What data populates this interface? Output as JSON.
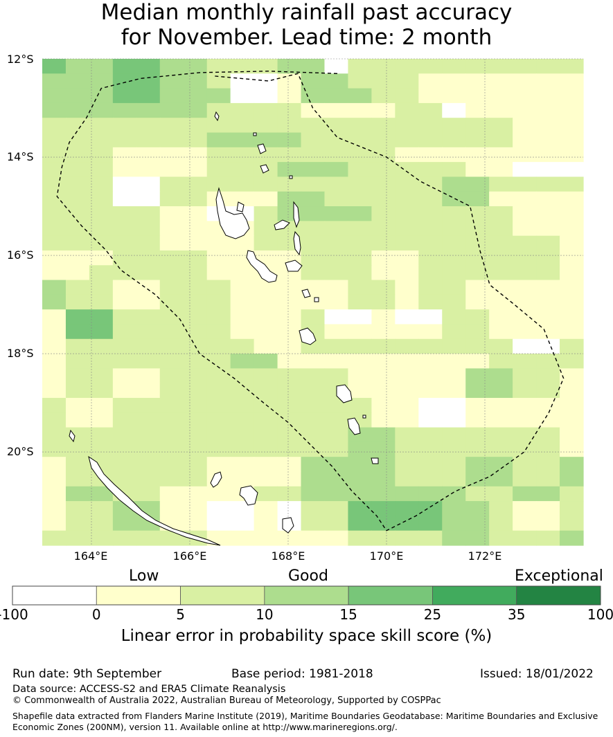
{
  "title": {
    "line1": "Median monthly rainfall past accuracy",
    "line2": "for November. Lead time: 2 month"
  },
  "map": {
    "lat_labels": [
      "12°S",
      "14°S",
      "16°S",
      "18°S",
      "20°S"
    ],
    "lon_labels": [
      "164°E",
      "166°E",
      "168°E",
      "170°E",
      "172°E"
    ],
    "lon_range": [
      163.0,
      174.0
    ],
    "lat_range": [
      -21.9,
      -12.0
    ],
    "grid_resolution_deg": [
      0.83,
      0.56
    ],
    "colors": {
      "nodata": "#ffffff",
      "c0": "#ffffcc",
      "c5": "#d9f0a3",
      "c10": "#addd8e",
      "c15": "#78c679",
      "c25": "#41ab5d",
      "c35": "#238443",
      "boundary": "#000000"
    },
    "skill_grid": [
      [
        3,
        2,
        2,
        3,
        3,
        2,
        2,
        1,
        1,
        1,
        2,
        2,
        -1,
        1,
        1,
        1,
        1,
        1,
        1,
        1,
        1,
        1,
        1
      ],
      [
        2,
        2,
        2,
        3,
        3,
        2,
        2,
        1,
        -1,
        -1,
        0,
        2,
        2,
        1,
        1,
        1,
        0,
        0,
        0,
        0,
        0,
        0,
        0
      ],
      [
        2,
        2,
        2,
        3,
        3,
        2,
        2,
        2,
        -1,
        -1,
        0,
        2,
        2,
        2,
        1,
        1,
        0,
        0,
        0,
        0,
        0,
        0,
        0
      ],
      [
        2,
        2,
        2,
        2,
        2,
        2,
        2,
        1,
        1,
        1,
        1,
        0,
        0,
        0,
        0,
        1,
        1,
        -1,
        0,
        0,
        0,
        0,
        0
      ],
      [
        1,
        1,
        1,
        1,
        1,
        1,
        1,
        1,
        1,
        1,
        1,
        1,
        1,
        1,
        1,
        1,
        1,
        1,
        1,
        1,
        0,
        0,
        0
      ],
      [
        1,
        1,
        1,
        1,
        1,
        1,
        1,
        2,
        2,
        2,
        2,
        1,
        1,
        1,
        1,
        1,
        1,
        1,
        1,
        1,
        0,
        0,
        0
      ],
      [
        1,
        1,
        1,
        0,
        0,
        0,
        0,
        1,
        1,
        1,
        1,
        1,
        1,
        1,
        1,
        0,
        0,
        0,
        0,
        0,
        0,
        0,
        0
      ],
      [
        1,
        1,
        1,
        0,
        0,
        0,
        0,
        1,
        1,
        1,
        2,
        2,
        2,
        1,
        1,
        1,
        1,
        1,
        0,
        0,
        -1,
        -1,
        -1
      ],
      [
        1,
        1,
        1,
        -1,
        -1,
        1,
        1,
        1,
        1,
        1,
        1,
        1,
        1,
        1,
        1,
        1,
        1,
        2,
        2,
        1,
        1,
        1,
        1
      ],
      [
        1,
        1,
        1,
        -1,
        -1,
        1,
        1,
        0,
        0,
        0,
        2,
        2,
        1,
        1,
        1,
        1,
        1,
        2,
        2,
        0,
        0,
        0,
        0
      ],
      [
        1,
        1,
        1,
        1,
        1,
        0,
        0,
        -1,
        -1,
        1,
        2,
        2,
        2,
        2,
        1,
        1,
        1,
        1,
        1,
        1,
        0,
        0,
        0
      ],
      [
        1,
        1,
        1,
        1,
        1,
        0,
        0,
        0,
        0,
        1,
        1,
        1,
        1,
        1,
        1,
        1,
        1,
        1,
        1,
        1,
        0,
        0,
        0
      ],
      [
        1,
        1,
        1,
        1,
        1,
        0,
        0,
        0,
        0,
        1,
        1,
        1,
        1,
        1,
        1,
        1,
        1,
        1,
        1,
        1,
        1,
        1,
        0
      ],
      [
        0,
        0,
        0,
        1,
        1,
        1,
        1,
        0,
        0,
        0,
        0,
        1,
        1,
        1,
        0,
        0,
        1,
        1,
        1,
        1,
        1,
        1,
        0
      ],
      [
        0,
        0,
        1,
        1,
        1,
        1,
        1,
        0,
        0,
        0,
        0,
        1,
        1,
        1,
        0,
        0,
        1,
        1,
        1,
        1,
        1,
        1,
        0
      ],
      [
        2,
        1,
        1,
        0,
        0,
        1,
        1,
        1,
        0,
        0,
        0,
        0,
        0,
        1,
        1,
        0,
        1,
        1,
        0,
        0,
        0,
        0,
        0
      ],
      [
        2,
        1,
        1,
        0,
        0,
        1,
        1,
        1,
        0,
        0,
        0,
        0,
        0,
        1,
        1,
        0,
        1,
        1,
        0,
        0,
        0,
        0,
        0
      ],
      [
        0,
        3,
        3,
        1,
        1,
        1,
        1,
        1,
        0,
        0,
        0,
        1,
        -1,
        -1,
        0,
        -1,
        -1,
        1,
        1,
        0,
        0,
        0,
        0
      ],
      [
        0,
        3,
        3,
        1,
        1,
        1,
        1,
        1,
        0,
        0,
        0,
        1,
        0,
        0,
        0,
        0,
        0,
        1,
        1,
        0,
        0,
        0,
        0
      ],
      [
        0,
        1,
        1,
        1,
        1,
        1,
        1,
        1,
        1,
        0,
        0,
        1,
        1,
        1,
        1,
        1,
        1,
        1,
        1,
        1,
        -1,
        -1,
        1
      ],
      [
        0,
        1,
        1,
        1,
        1,
        1,
        1,
        1,
        2,
        2,
        0,
        0,
        0,
        0,
        0,
        0,
        0,
        0,
        0,
        1,
        1,
        1,
        1
      ],
      [
        0,
        1,
        1,
        0,
        0,
        1,
        1,
        1,
        1,
        1,
        1,
        1,
        1,
        0,
        0,
        0,
        0,
        0,
        2,
        2,
        1,
        1,
        0
      ],
      [
        0,
        1,
        1,
        0,
        0,
        1,
        1,
        1,
        1,
        1,
        1,
        1,
        1,
        0,
        0,
        0,
        0,
        0,
        2,
        2,
        1,
        1,
        0
      ],
      [
        1,
        0,
        0,
        1,
        1,
        1,
        1,
        1,
        1,
        1,
        1,
        1,
        1,
        1,
        0,
        0,
        -1,
        -1,
        0,
        0,
        0,
        0,
        0
      ],
      [
        1,
        0,
        0,
        1,
        1,
        1,
        1,
        1,
        1,
        1,
        1,
        1,
        1,
        1,
        0,
        0,
        -1,
        -1,
        0,
        0,
        0,
        0,
        0
      ],
      [
        1,
        1,
        1,
        1,
        1,
        1,
        1,
        1,
        1,
        1,
        1,
        1,
        1,
        2,
        2,
        1,
        1,
        1,
        1,
        1,
        1,
        1,
        0
      ],
      [
        1,
        1,
        1,
        1,
        1,
        1,
        1,
        1,
        1,
        1,
        1,
        1,
        1,
        2,
        2,
        1,
        1,
        1,
        1,
        1,
        1,
        1,
        0
      ],
      [
        0,
        1,
        1,
        1,
        1,
        1,
        1,
        0,
        0,
        0,
        0,
        2,
        2,
        2,
        2,
        1,
        1,
        1,
        2,
        2,
        1,
        1,
        2
      ],
      [
        0,
        1,
        1,
        1,
        1,
        1,
        1,
        0,
        0,
        0,
        0,
        2,
        2,
        2,
        2,
        1,
        1,
        1,
        2,
        2,
        1,
        1,
        2
      ],
      [
        0,
        2,
        2,
        1,
        1,
        0,
        0,
        0,
        0,
        1,
        1,
        2,
        2,
        2,
        2,
        2,
        2,
        2,
        1,
        1,
        2,
        2,
        1
      ],
      [
        0,
        1,
        1,
        2,
        2,
        0,
        0,
        -1,
        -1,
        0,
        -1,
        1,
        1,
        3,
        3,
        3,
        3,
        2,
        2,
        1,
        0,
        0,
        1
      ],
      [
        0,
        1,
        1,
        2,
        2,
        0,
        0,
        -1,
        -1,
        0,
        -1,
        1,
        1,
        3,
        3,
        3,
        3,
        2,
        2,
        1,
        0,
        0,
        1
      ],
      [
        1,
        1,
        1,
        1,
        1,
        1,
        1,
        0,
        0,
        0,
        0,
        0,
        0,
        1,
        1,
        1,
        1,
        2,
        2,
        1,
        1,
        1,
        2
      ]
    ],
    "eez_boundary": [
      [
        169.0,
        -12.3
      ],
      [
        167.6,
        -12.25
      ],
      [
        166.2,
        -12.28
      ],
      [
        165.0,
        -12.4
      ],
      [
        164.2,
        -12.6
      ],
      [
        163.9,
        -13.2
      ],
      [
        163.55,
        -13.7
      ],
      [
        163.4,
        -14.2
      ],
      [
        163.3,
        -14.8
      ],
      [
        163.8,
        -15.4
      ],
      [
        164.3,
        -15.9
      ],
      [
        164.6,
        -16.3
      ],
      [
        165.3,
        -16.8
      ],
      [
        165.8,
        -17.3
      ],
      [
        166.2,
        -18.0
      ],
      [
        166.9,
        -18.5
      ],
      [
        167.5,
        -19.0
      ],
      [
        168.0,
        -19.4
      ],
      [
        168.5,
        -19.9
      ],
      [
        168.9,
        -20.3
      ],
      [
        169.3,
        -20.8
      ],
      [
        169.8,
        -21.3
      ],
      [
        170.0,
        -21.6
      ],
      [
        170.6,
        -21.3
      ],
      [
        171.4,
        -20.8
      ],
      [
        172.1,
        -20.5
      ],
      [
        172.8,
        -20.0
      ],
      [
        173.3,
        -19.2
      ],
      [
        173.6,
        -18.5
      ],
      [
        173.2,
        -17.5
      ],
      [
        172.6,
        -17.0
      ],
      [
        172.1,
        -16.6
      ],
      [
        171.9,
        -15.9
      ],
      [
        171.7,
        -15.0
      ],
      [
        170.7,
        -14.5
      ],
      [
        170.0,
        -14.0
      ],
      [
        169.0,
        -13.6
      ],
      [
        168.5,
        -13.0
      ],
      [
        168.2,
        -12.3
      ],
      [
        167.6,
        -12.45
      ],
      [
        166.5,
        -12.35
      ]
    ]
  },
  "colorbar": {
    "category_labels": [
      "Low",
      "Good",
      "Exceptional"
    ],
    "ticks": [
      "-100",
      "0",
      "5",
      "10",
      "15",
      "25",
      "35",
      "100"
    ],
    "bins": [
      {
        "range": "-100 to 0",
        "color": "#ffffff"
      },
      {
        "range": "0 to 5",
        "color": "#ffffcc"
      },
      {
        "range": "5 to 10",
        "color": "#d9f0a3"
      },
      {
        "range": "10 to 15",
        "color": "#addd8e"
      },
      {
        "range": "15 to 25",
        "color": "#78c679"
      },
      {
        "range": "25 to 35",
        "color": "#41ab5d"
      },
      {
        "range": "35 to 100",
        "color": "#238443"
      }
    ],
    "title": "Linear error in probability space skill score (%)"
  },
  "footer": {
    "run_date": "Run date: 9th September",
    "base_period": "Base period: 1981-2018",
    "issued": "Issued: 18/01/2022",
    "data_source": "Data source: ACCESS-S2 and ERA5 Climate Reanalysis",
    "copyright": "© Commonwealth of Australia 2022, Australian Bureau of Meteorology, Supported by COSPPac",
    "shapefile_line1": "Shapefile data extracted from Flanders Marine Institute (2019), Maritime Boundaries Geodatabase: Maritime Boundaries and Exclusive",
    "shapefile_line2": "Economic Zones (200NM), version 11. Available online at http://www.marineregions.org/."
  }
}
